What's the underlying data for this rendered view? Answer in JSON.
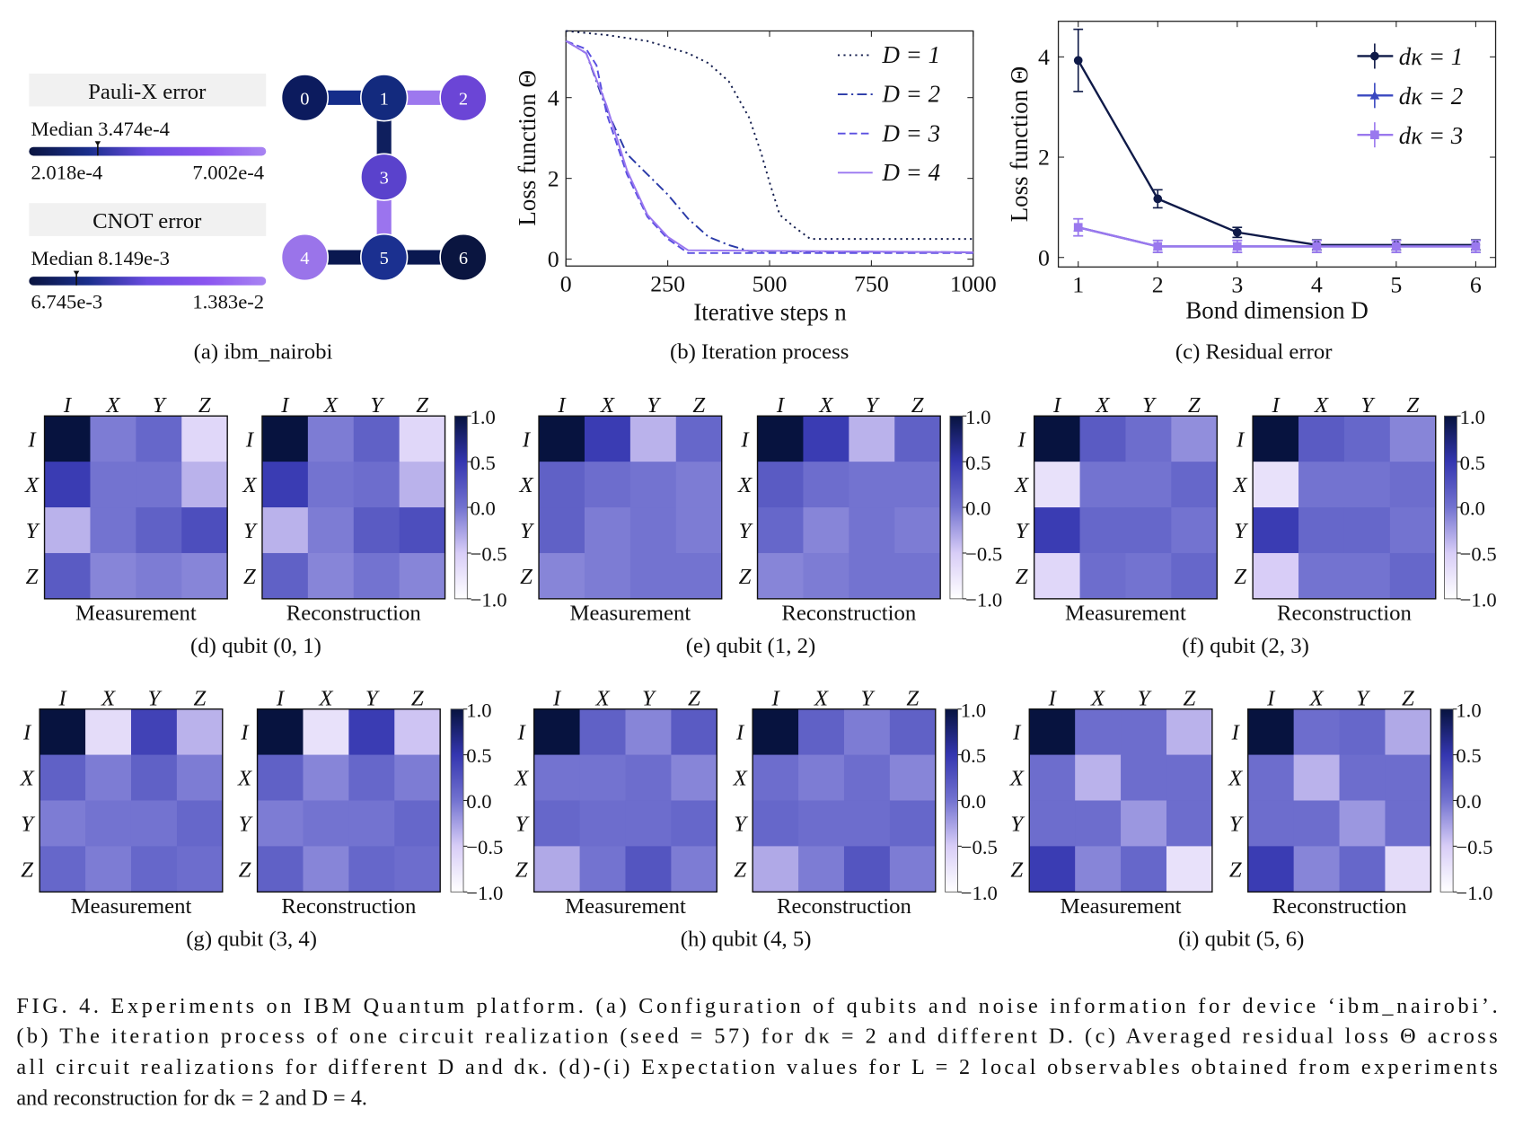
{
  "panel_a": {
    "caption": "(a) ibm_nairobi",
    "legends": [
      {
        "title": "Pauli-X error",
        "median_label": "Median 3.474e-4",
        "min": "2.018e-4",
        "max": "7.002e-4",
        "median_fraction": 0.29
      },
      {
        "title": "CNOT error",
        "median_label": "Median 8.149e-3",
        "min": "6.745e-3",
        "max": "1.383e-2",
        "median_fraction": 0.2
      }
    ],
    "colorbar_colors": [
      "#0a1440",
      "#1a2e8c",
      "#6a4ce0",
      "#8b55f0",
      "#a884f2"
    ],
    "qubits": [
      {
        "label": "0",
        "color": "#0c1b5e"
      },
      {
        "label": "1",
        "color": "#132a7e"
      },
      {
        "label": "2",
        "color": "#6b45d6"
      },
      {
        "label": "3",
        "color": "#5a42cc"
      },
      {
        "label": "4",
        "color": "#9a74ea"
      },
      {
        "label": "5",
        "color": "#1b3090"
      },
      {
        "label": "6",
        "color": "#0a1540"
      }
    ],
    "couplers": [
      {
        "from": 0,
        "to": 1,
        "color": "#152d8a"
      },
      {
        "from": 1,
        "to": 2,
        "color": "#9d78ee"
      },
      {
        "from": 1,
        "to": 3,
        "color": "#0f1f5e"
      },
      {
        "from": 3,
        "to": 5,
        "color": "#9b74ee"
      },
      {
        "from": 4,
        "to": 5,
        "color": "#0a1850"
      },
      {
        "from": 5,
        "to": 6,
        "color": "#0a1850"
      }
    ]
  },
  "chart_data": [
    {
      "type": "line",
      "caption": "(b) Iteration process",
      "xlabel": "Iterative steps n",
      "ylabel": "Loss function Θ",
      "xlim": [
        0,
        1000
      ],
      "ylim": [
        -0.17,
        5.65
      ],
      "xticks": [
        "0",
        "250",
        "500",
        "750",
        "1000"
      ],
      "yticks": [
        "0",
        "2",
        "4"
      ],
      "legend": "top-right",
      "series": [
        {
          "name": "D = 1",
          "color": "#141e4e",
          "style": "dotted",
          "x": [
            0,
            100,
            200,
            300,
            350,
            400,
            450,
            480,
            500,
            525,
            560,
            600,
            1000
          ],
          "y": [
            5.65,
            5.55,
            5.4,
            5.1,
            4.85,
            4.4,
            3.5,
            2.6,
            1.9,
            1.1,
            0.8,
            0.5,
            0.5
          ]
        },
        {
          "name": "D = 2",
          "color": "#2a3aa8",
          "style": "dashdot",
          "x": [
            0,
            50,
            100,
            150,
            200,
            250,
            300,
            350,
            400,
            450,
            1000
          ],
          "y": [
            5.4,
            5.1,
            3.7,
            2.6,
            2.1,
            1.6,
            1.0,
            0.55,
            0.35,
            0.2,
            0.17
          ]
        },
        {
          "name": "D = 3",
          "color": "#5a4fe0",
          "style": "dashed",
          "x": [
            0,
            50,
            75,
            100,
            150,
            200,
            250,
            300,
            1000
          ],
          "y": [
            5.4,
            5.2,
            4.8,
            3.6,
            2.1,
            1.05,
            0.5,
            0.15,
            0.15
          ]
        },
        {
          "name": "D = 4",
          "color": "#9a77f0",
          "style": "solid",
          "x": [
            0,
            50,
            100,
            150,
            200,
            250,
            300,
            1000
          ],
          "y": [
            5.4,
            5.1,
            3.8,
            2.2,
            1.1,
            0.55,
            0.22,
            0.17
          ]
        }
      ]
    },
    {
      "type": "line",
      "caption": "(c) Residual error",
      "xlabel": "Bond dimension D",
      "ylabel": "Loss function Θ",
      "xlim": [
        0.75,
        6.25
      ],
      "ylim": [
        -0.19,
        4.71
      ],
      "xticks": [
        "1",
        "2",
        "3",
        "4",
        "5",
        "6"
      ],
      "yticks": [
        "0",
        "2",
        "4"
      ],
      "legend": "top-right",
      "x": [
        1,
        2,
        3,
        4,
        5,
        6
      ],
      "series": [
        {
          "name": "dκ = 1",
          "color": "#0f1a48",
          "marker": "circle",
          "y": [
            3.93,
            1.17,
            0.5,
            0.25,
            0.25,
            0.25
          ],
          "err": [
            0.62,
            0.18,
            0.1,
            0.1,
            0.1,
            0.1
          ]
        },
        {
          "name": "dκ = 2",
          "color": "#3a48c0",
          "marker": "triangle",
          "y": [
            0.6,
            0.22,
            0.22,
            0.22,
            0.22,
            0.22
          ],
          "err": [
            0.17,
            0.12,
            0.12,
            0.12,
            0.12,
            0.12
          ]
        },
        {
          "name": "dκ = 3",
          "color": "#9a78ee",
          "marker": "square",
          "y": [
            0.6,
            0.22,
            0.22,
            0.22,
            0.22,
            0.22
          ],
          "err": [
            0.17,
            0.12,
            0.12,
            0.12,
            0.12,
            0.12
          ]
        }
      ]
    },
    {
      "type": "heatmap",
      "labels": [
        "I",
        "X",
        "Y",
        "Z"
      ],
      "vmin": -1,
      "vmax": 1,
      "colorbar_ticks": [
        "1.0",
        "0.5",
        "0.0",
        "−0.5",
        "−1.0"
      ],
      "colormap": [
        "#ffffff",
        "#d8cdf7",
        "#7373d0",
        "#3436b0",
        "#07133f"
      ],
      "measurement_label": "Measurement",
      "reconstruction_label": "Reconstruction",
      "panels": [
        {
          "caption": "(d) qubit (0, 1)",
          "measurement": [
            [
              1,
              -0.05,
              0.1,
              -0.6
            ],
            [
              0.45,
              0.0,
              0.0,
              -0.35
            ],
            [
              -0.35,
              0.0,
              0.15,
              0.3
            ],
            [
              0.2,
              -0.1,
              -0.05,
              -0.1
            ]
          ],
          "reconstruction": [
            [
              1,
              -0.05,
              0.15,
              -0.6
            ],
            [
              0.45,
              0.0,
              0.05,
              -0.35
            ],
            [
              -0.35,
              -0.05,
              0.2,
              0.3
            ],
            [
              0.15,
              -0.1,
              0.0,
              -0.1
            ]
          ]
        },
        {
          "caption": "(e) qubit (1, 2)",
          "measurement": [
            [
              1,
              0.45,
              -0.35,
              0.1
            ],
            [
              0.15,
              0.05,
              0.0,
              -0.05
            ],
            [
              0.15,
              -0.05,
              0.0,
              -0.05
            ],
            [
              -0.1,
              -0.05,
              0.0,
              0.0
            ]
          ],
          "reconstruction": [
            [
              1,
              0.45,
              -0.35,
              0.15
            ],
            [
              0.2,
              0.05,
              0.0,
              0.0
            ],
            [
              0.1,
              -0.1,
              0.0,
              -0.05
            ],
            [
              -0.1,
              -0.05,
              0.0,
              0.0
            ]
          ]
        },
        {
          "caption": "(f) qubit (2, 3)",
          "measurement": [
            [
              1,
              0.2,
              0.05,
              -0.15
            ],
            [
              -0.7,
              0.0,
              0.0,
              0.1
            ],
            [
              0.45,
              0.1,
              0.1,
              0.0
            ],
            [
              -0.6,
              0.05,
              0.0,
              0.1
            ]
          ],
          "reconstruction": [
            [
              1,
              0.2,
              0.1,
              -0.1
            ],
            [
              -0.7,
              0.0,
              0.0,
              0.05
            ],
            [
              0.45,
              0.1,
              0.1,
              0.0
            ],
            [
              -0.5,
              0.0,
              0.0,
              0.1
            ]
          ]
        },
        {
          "caption": "(g) qubit (3, 4)",
          "measurement": [
            [
              1,
              -0.65,
              0.4,
              -0.35
            ],
            [
              0.15,
              -0.05,
              0.15,
              -0.05
            ],
            [
              -0.05,
              0.0,
              0.0,
              0.1
            ],
            [
              0.1,
              -0.05,
              0.1,
              0.05
            ]
          ],
          "reconstruction": [
            [
              1,
              -0.7,
              0.45,
              -0.45
            ],
            [
              0.15,
              -0.1,
              0.1,
              -0.05
            ],
            [
              -0.05,
              0.0,
              0.0,
              0.1
            ],
            [
              0.15,
              -0.1,
              0.1,
              0.05
            ]
          ]
        },
        {
          "caption": "(h) qubit (4, 5)",
          "measurement": [
            [
              1,
              0.15,
              -0.1,
              0.2
            ],
            [
              0.0,
              0.0,
              0.05,
              -0.1
            ],
            [
              0.1,
              0.05,
              0.05,
              0.1
            ],
            [
              -0.3,
              0.0,
              0.25,
              -0.05
            ]
          ],
          "reconstruction": [
            [
              1,
              0.15,
              -0.05,
              0.15
            ],
            [
              0.05,
              -0.05,
              0.05,
              -0.1
            ],
            [
              0.1,
              0.05,
              0.05,
              0.1
            ],
            [
              -0.3,
              -0.05,
              0.25,
              -0.05
            ]
          ]
        },
        {
          "caption": "(i) qubit (5, 6)",
          "measurement": [
            [
              1,
              0.05,
              0.05,
              -0.35
            ],
            [
              0.05,
              -0.35,
              0.05,
              0.05
            ],
            [
              0.05,
              0.05,
              -0.2,
              0.05
            ],
            [
              0.45,
              -0.1,
              0.1,
              -0.7
            ]
          ],
          "reconstruction": [
            [
              1,
              0.05,
              0.1,
              -0.3
            ],
            [
              0.05,
              -0.35,
              0.05,
              0.05
            ],
            [
              0.05,
              0.05,
              -0.2,
              0.05
            ],
            [
              0.45,
              -0.1,
              0.1,
              -0.65
            ]
          ]
        }
      ]
    }
  ],
  "figure_caption": {
    "lines": [
      "FIG. 4. Experiments on IBM Quantum platform. (a) Configuration of qubits and noise information for device ‘ibm_nairobi’.",
      "(b) The iteration process of one circuit realization (seed = 57) for dκ = 2 and different D. (c) Averaged residual loss Θ across",
      "all circuit realizations for different D and dκ. (d)-(i) Expectation values for L = 2 local observables obtained from experiments",
      "and reconstruction for dκ = 2 and D = 4."
    ]
  }
}
